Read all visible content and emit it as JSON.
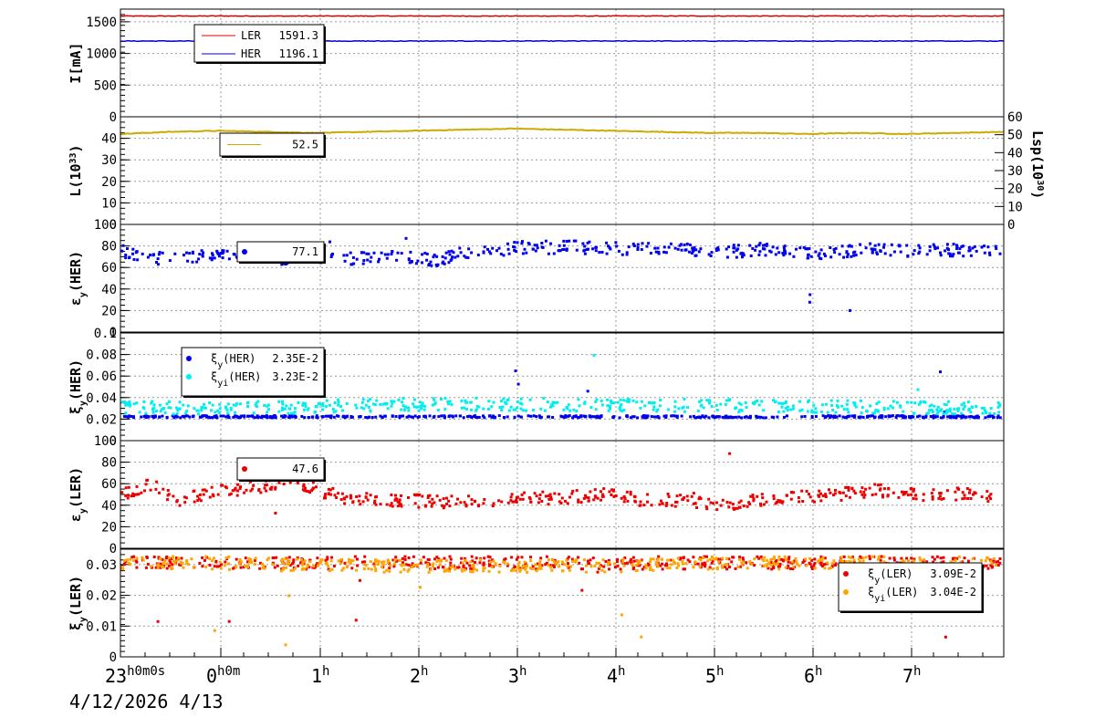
{
  "x_axis": {
    "ticks": [
      {
        "h": "23",
        "suffix": "h0m0s"
      },
      {
        "h": "0",
        "suffix": "h0m"
      },
      {
        "h": "1",
        "suffix": "h"
      },
      {
        "h": "2",
        "suffix": "h"
      },
      {
        "h": "3",
        "suffix": "h"
      },
      {
        "h": "4",
        "suffix": "h"
      },
      {
        "h": "5",
        "suffix": "h"
      },
      {
        "h": "6",
        "suffix": "h"
      },
      {
        "h": "7",
        "suffix": "h"
      }
    ],
    "date_label": "4/12/2026  4/13"
  },
  "colors": {
    "ler_current": "#dd0000",
    "her_current": "#0000cc",
    "luminosity": "#ccaa00",
    "her_emit": "#0000ee",
    "her_xi": "#0000ee",
    "her_xi_i": "#00eeee",
    "ler_emit": "#ee0000",
    "ler_xi": "#ee0000",
    "ler_xi_i": "#ffa500"
  },
  "panels": [
    {
      "id": "current",
      "ylabel": "I[mA]",
      "yticks": [
        "0",
        "500",
        "1000",
        "1500"
      ],
      "legend": [
        {
          "label": "LER",
          "value": "1591.3",
          "color": "#dd0000",
          "marker": "line"
        },
        {
          "label": "HER",
          "value": "1196.1",
          "color": "#0000cc",
          "marker": "line"
        }
      ]
    },
    {
      "id": "luminosity",
      "ylabel": "L(10",
      "ylabel_sup": "33",
      "ylabel_end": ")",
      "yticks": [
        "0",
        "10",
        "20",
        "30",
        "40"
      ],
      "right_label": "Lsp(10",
      "right_label_sup": "30",
      "right_label_end": ")",
      "right_ticks": [
        "0",
        "10",
        "20",
        "30",
        "40",
        "50",
        "60"
      ],
      "legend": [
        {
          "label": "",
          "value": "52.5",
          "color": "#ccaa00",
          "marker": "line"
        }
      ]
    },
    {
      "id": "her-emittance",
      "ylabel": "ε",
      "ylabel_sub": "y",
      "ylabel_end": "(HER)",
      "yticks": [
        "0",
        "20",
        "40",
        "60",
        "80",
        "100"
      ],
      "legend": [
        {
          "label": "",
          "value": "77.1",
          "color": "#0000ee",
          "marker": "dot"
        }
      ]
    },
    {
      "id": "her-xi",
      "ylabel": "ξ",
      "ylabel_sub": "y",
      "ylabel_end": "(HER)",
      "yticks": [
        "0",
        "0.02",
        "0.04",
        "0.06",
        "0.08",
        "0.1"
      ],
      "legend": [
        {
          "label": "ξ",
          "label_sub": "y",
          "label_end": "(HER)",
          "value": "2.35E-2",
          "color": "#0000ee",
          "marker": "dot"
        },
        {
          "label": "ξ",
          "label_sub": "yi",
          "label_end": "(HER)",
          "value": "3.23E-2",
          "color": "#00eeee",
          "marker": "dot"
        }
      ]
    },
    {
      "id": "ler-emittance",
      "ylabel": "ε",
      "ylabel_sub": "y",
      "ylabel_end": "(LER)",
      "yticks": [
        "0",
        "20",
        "40",
        "60",
        "80",
        "100"
      ],
      "legend": [
        {
          "label": "",
          "value": "47.6",
          "color": "#ee0000",
          "marker": "dot"
        }
      ]
    },
    {
      "id": "ler-xi",
      "ylabel": "ξ",
      "ylabel_sub": "y",
      "ylabel_end": "(LER)",
      "yticks": [
        "0",
        "0.01",
        "0.02",
        "0.03"
      ],
      "legend": [
        {
          "label": "ξ",
          "label_sub": "y",
          "label_end": "(LER)",
          "value": "3.09E-2",
          "color": "#ee0000",
          "marker": "dot"
        },
        {
          "label": "ξ",
          "label_sub": "yi",
          "label_end": "(LER)",
          "value": "3.04E-2",
          "color": "#ffa500",
          "marker": "dot"
        }
      ]
    }
  ],
  "chart_data": [
    {
      "type": "line",
      "x_unit": "hours from 23:00 4/12/2026",
      "xlim": [
        0,
        9
      ],
      "ylim": [
        0,
        1700
      ],
      "series": [
        {
          "name": "LER",
          "color": "#dd0000",
          "x": [
            0,
            1,
            2,
            3,
            4,
            5,
            6,
            7,
            8,
            9
          ],
          "y": [
            1590,
            1591,
            1590,
            1591,
            1590,
            1591,
            1591,
            1590,
            1591,
            1591
          ]
        },
        {
          "name": "HER",
          "color": "#0000cc",
          "x": [
            0,
            1,
            2,
            3,
            4,
            5,
            6,
            7,
            8,
            9
          ],
          "y": [
            1196,
            1196,
            1196,
            1195,
            1196,
            1196,
            1196,
            1196,
            1196,
            1196
          ]
        }
      ]
    },
    {
      "type": "line",
      "xlim": [
        0,
        9
      ],
      "ylim": [
        0,
        50
      ],
      "series": [
        {
          "color": "#ccaa00",
          "x": [
            0,
            0.5,
            1,
            1.5,
            2,
            2.5,
            3,
            3.5,
            4,
            4.5,
            5,
            5.5,
            6,
            6.5,
            7,
            7.5,
            8,
            8.5,
            9
          ],
          "y": [
            42,
            43,
            43.5,
            43,
            42.5,
            43,
            43.5,
            44,
            44.5,
            44,
            43.5,
            43,
            42.5,
            42.5,
            42,
            42.5,
            42,
            42.5,
            43
          ]
        }
      ]
    },
    {
      "type": "scatter",
      "xlim": [
        0,
        9
      ],
      "ylim": [
        0,
        100
      ],
      "series": [
        {
          "color": "#0000ee",
          "x": [
            0,
            0.3,
            0.6,
            0.9,
            1.2,
            1.5,
            1.8,
            2,
            2.3,
            2.6,
            2.9,
            3.2,
            3.5,
            3.8,
            4.1,
            4.4,
            4.7,
            5,
            5.3,
            5.6,
            5.9,
            6.2,
            6.5,
            6.8,
            7.1,
            7.4,
            7.7,
            8,
            8.3,
            8.6,
            8.9
          ],
          "y": [
            77,
            70,
            70,
            73,
            72,
            70,
            70,
            69,
            70,
            69,
            72,
            68,
            75,
            76,
            80,
            80,
            80,
            79,
            79,
            80,
            77,
            76,
            78,
            76,
            75,
            76,
            78,
            77,
            79,
            76,
            78
          ]
        }
      ]
    },
    {
      "type": "scatter",
      "xlim": [
        0,
        9
      ],
      "ylim": [
        0,
        0.1
      ],
      "series": [
        {
          "color": "#0000ee",
          "x": [
            0,
            1,
            2,
            3,
            4,
            5,
            6,
            7,
            8,
            9
          ],
          "y": [
            0.0235,
            0.0235,
            0.0235,
            0.0235,
            0.0235,
            0.0235,
            0.0235,
            0.0235,
            0.0235,
            0.0235
          ]
        },
        {
          "color": "#00eeee",
          "x": [
            0,
            1,
            2,
            3,
            4,
            5,
            6,
            7,
            8,
            9
          ],
          "y": [
            0.032,
            0.031,
            0.033,
            0.035,
            0.035,
            0.034,
            0.034,
            0.033,
            0.032,
            0.032
          ]
        }
      ]
    },
    {
      "type": "scatter",
      "xlim": [
        0,
        9
      ],
      "ylim": [
        0,
        100
      ],
      "series": [
        {
          "color": "#ee0000",
          "x": [
            0,
            0.3,
            0.6,
            0.9,
            1.2,
            1.5,
            1.8,
            2,
            2.3,
            2.6,
            2.9,
            3.2,
            3.5,
            3.8,
            4.1,
            4.4,
            4.7,
            5,
            5.3,
            5.6,
            5.9,
            6.2,
            6.5,
            6.8,
            7.1,
            7.4,
            7.7,
            8,
            8.3,
            8.6,
            8.9
          ],
          "y": [
            52,
            60,
            45,
            54,
            56,
            60,
            62,
            55,
            48,
            46,
            46,
            44,
            45,
            46,
            48,
            48,
            50,
            52,
            46,
            46,
            44,
            42,
            46,
            48,
            50,
            52,
            55,
            53,
            50,
            52,
            48
          ]
        }
      ]
    },
    {
      "type": "scatter",
      "xlim": [
        0,
        9
      ],
      "ylim": [
        0,
        0.035
      ],
      "series": [
        {
          "color": "#ee0000",
          "x": [
            0,
            1,
            2,
            3,
            4,
            5,
            6,
            7,
            8,
            9
          ],
          "y": [
            0.031,
            0.031,
            0.031,
            0.031,
            0.031,
            0.031,
            0.031,
            0.031,
            0.031,
            0.031
          ]
        },
        {
          "color": "#ffa500",
          "x": [
            0,
            1,
            2,
            3,
            4,
            5,
            6,
            7,
            8,
            9
          ],
          "y": [
            0.031,
            0.031,
            0.03,
            0.03,
            0.03,
            0.03,
            0.031,
            0.031,
            0.031,
            0.031
          ]
        }
      ]
    }
  ]
}
